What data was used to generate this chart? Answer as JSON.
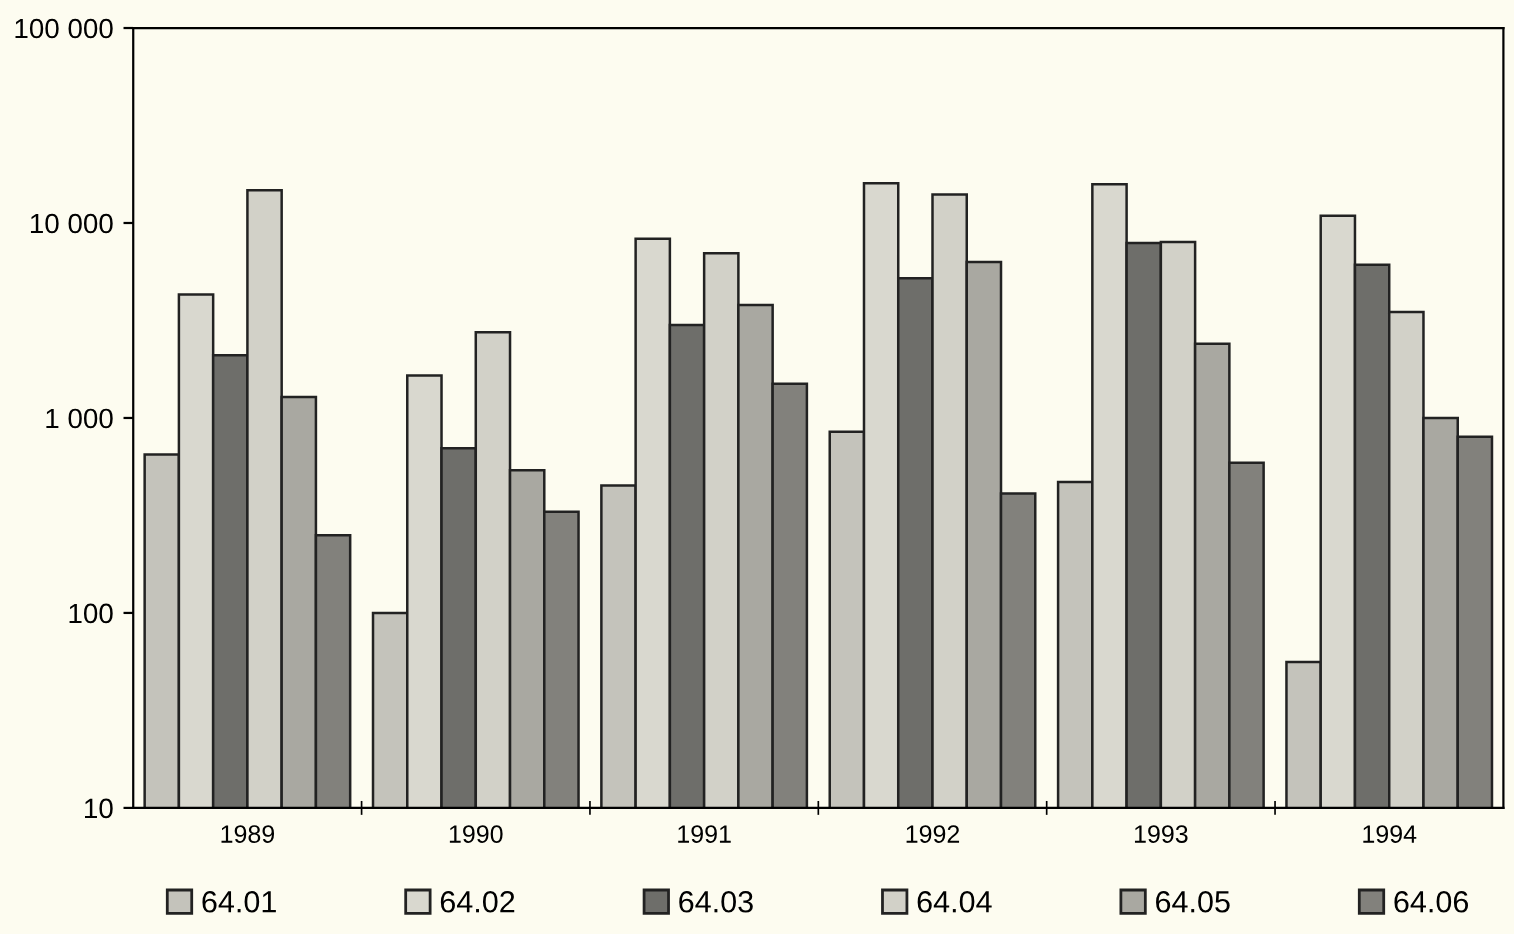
{
  "chart_data": {
    "type": "bar",
    "categories": [
      "1989",
      "1990",
      "1991",
      "1992",
      "1993",
      "1994"
    ],
    "series": [
      {
        "name": "64.01",
        "color": "#c4c3bb",
        "values": [
          650,
          100,
          450,
          850,
          470,
          56
        ]
      },
      {
        "name": "64.02",
        "color": "#d9d8cf",
        "values": [
          4300,
          1650,
          8300,
          16000,
          15800,
          10900
        ]
      },
      {
        "name": "64.03",
        "color": "#6e6e6a",
        "values": [
          2100,
          700,
          3000,
          5200,
          7900,
          6100
        ]
      },
      {
        "name": "64.04",
        "color": "#d2d1c8",
        "values": [
          14700,
          2750,
          7000,
          14000,
          8000,
          3500
        ]
      },
      {
        "name": "64.05",
        "color": "#a9a8a1",
        "values": [
          1280,
          540,
          3800,
          6300,
          2400,
          1000
        ]
      },
      {
        "name": "64.06",
        "color": "#82817c",
        "values": [
          250,
          330,
          1500,
          410,
          590,
          800
        ]
      }
    ],
    "log": "y",
    "ylim": [
      10,
      100000
    ],
    "yticks": [
      10,
      100,
      {
        "value": 1000,
        "label": "1 000"
      },
      {
        "value": 10000,
        "label": "10 000"
      },
      {
        "value": 100000,
        "label": "100 000"
      }
    ],
    "grid": false,
    "legend": "bottom"
  }
}
